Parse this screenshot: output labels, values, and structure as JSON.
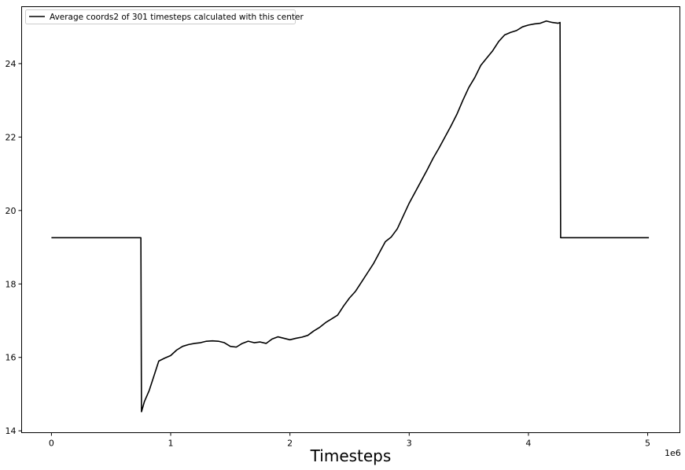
{
  "chart_data": {
    "type": "line",
    "title": "",
    "xlabel": "Timesteps",
    "ylabel": "",
    "x_offset_label": "1e6",
    "xlim": [
      -0.25,
      5.27
    ],
    "ylim": [
      13.95,
      25.55
    ],
    "x_ticks": [
      0,
      1,
      2,
      3,
      4,
      5
    ],
    "x_tick_labels": [
      "0",
      "1",
      "2",
      "3",
      "4",
      "5"
    ],
    "y_ticks": [
      14,
      16,
      18,
      20,
      22,
      24
    ],
    "y_tick_labels": [
      "14",
      "16",
      "18",
      "20",
      "22",
      "24"
    ],
    "grid": false,
    "legend_position": "top-left",
    "series": [
      {
        "name": "Average coords2 of 301 timesteps calculated with this center",
        "color": "#000000",
        "points": [
          [
            0.0,
            19.26
          ],
          [
            0.75,
            19.26
          ],
          [
            0.755,
            14.52
          ],
          [
            0.78,
            14.8
          ],
          [
            0.82,
            15.1
          ],
          [
            0.86,
            15.5
          ],
          [
            0.9,
            15.9
          ],
          [
            0.95,
            15.98
          ],
          [
            1.0,
            16.05
          ],
          [
            1.05,
            16.2
          ],
          [
            1.1,
            16.3
          ],
          [
            1.15,
            16.35
          ],
          [
            1.2,
            16.38
          ],
          [
            1.25,
            16.4
          ],
          [
            1.3,
            16.44
          ],
          [
            1.35,
            16.45
          ],
          [
            1.4,
            16.44
          ],
          [
            1.45,
            16.4
          ],
          [
            1.5,
            16.3
          ],
          [
            1.55,
            16.28
          ],
          [
            1.6,
            16.38
          ],
          [
            1.65,
            16.44
          ],
          [
            1.7,
            16.4
          ],
          [
            1.75,
            16.42
          ],
          [
            1.8,
            16.38
          ],
          [
            1.85,
            16.5
          ],
          [
            1.9,
            16.56
          ],
          [
            1.95,
            16.52
          ],
          [
            2.0,
            16.48
          ],
          [
            2.05,
            16.52
          ],
          [
            2.1,
            16.55
          ],
          [
            2.15,
            16.6
          ],
          [
            2.2,
            16.72
          ],
          [
            2.25,
            16.82
          ],
          [
            2.3,
            16.95
          ],
          [
            2.35,
            17.05
          ],
          [
            2.4,
            17.15
          ],
          [
            2.45,
            17.4
          ],
          [
            2.5,
            17.62
          ],
          [
            2.55,
            17.8
          ],
          [
            2.6,
            18.05
          ],
          [
            2.65,
            18.3
          ],
          [
            2.7,
            18.55
          ],
          [
            2.75,
            18.85
          ],
          [
            2.8,
            19.15
          ],
          [
            2.85,
            19.28
          ],
          [
            2.9,
            19.5
          ],
          [
            2.95,
            19.85
          ],
          [
            3.0,
            20.2
          ],
          [
            3.05,
            20.5
          ],
          [
            3.1,
            20.8
          ],
          [
            3.15,
            21.1
          ],
          [
            3.2,
            21.42
          ],
          [
            3.25,
            21.7
          ],
          [
            3.3,
            22.0
          ],
          [
            3.35,
            22.3
          ],
          [
            3.4,
            22.62
          ],
          [
            3.45,
            23.0
          ],
          [
            3.5,
            23.35
          ],
          [
            3.55,
            23.62
          ],
          [
            3.6,
            23.95
          ],
          [
            3.65,
            24.15
          ],
          [
            3.7,
            24.35
          ],
          [
            3.75,
            24.6
          ],
          [
            3.8,
            24.78
          ],
          [
            3.85,
            24.85
          ],
          [
            3.9,
            24.9
          ],
          [
            3.95,
            25.0
          ],
          [
            4.0,
            25.05
          ],
          [
            4.05,
            25.08
          ],
          [
            4.1,
            25.1
          ],
          [
            4.15,
            25.16
          ],
          [
            4.2,
            25.12
          ],
          [
            4.25,
            25.1
          ],
          [
            4.265,
            25.12
          ],
          [
            4.27,
            19.26
          ],
          [
            5.01,
            19.26
          ]
        ]
      }
    ]
  }
}
